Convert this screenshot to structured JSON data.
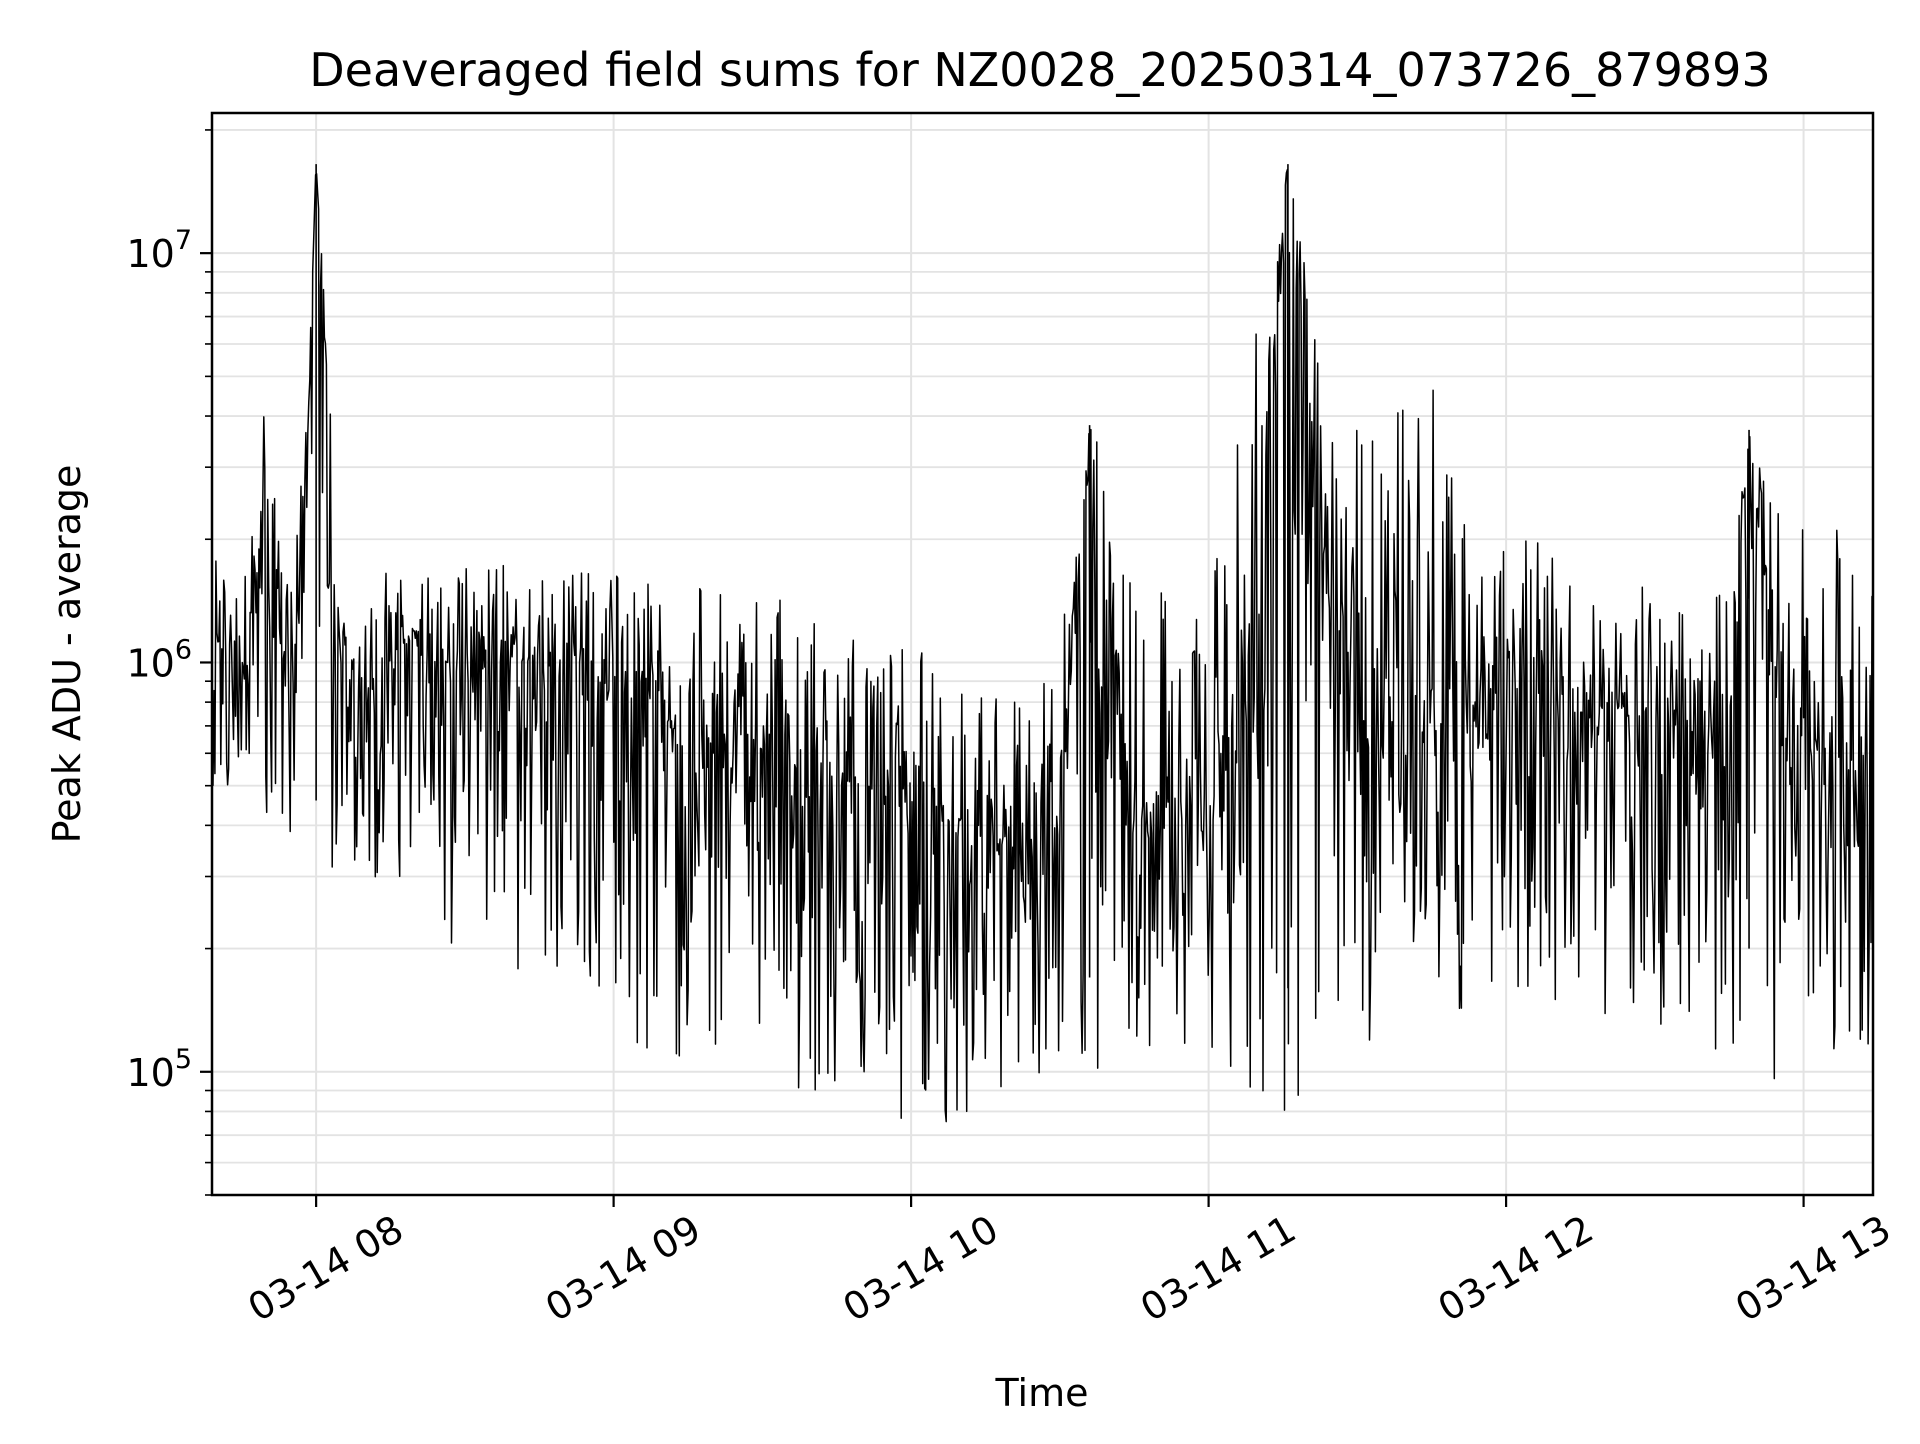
{
  "chart_data": {
    "type": "line",
    "title": "Deaveraged field sums for NZ0028_20250314_073726_879893",
    "xlabel": "Time",
    "ylabel": "Peak ADU - average",
    "x_range": [
      "2025-03-14T07:39:00",
      "2025-03-14T13:14:00"
    ],
    "xticks": [
      {
        "t": "2025-03-14T08:00:00",
        "label": "03-14 08"
      },
      {
        "t": "2025-03-14T09:00:00",
        "label": "03-14 09"
      },
      {
        "t": "2025-03-14T10:00:00",
        "label": "03-14 10"
      },
      {
        "t": "2025-03-14T11:00:00",
        "label": "03-14 11"
      },
      {
        "t": "2025-03-14T12:00:00",
        "label": "03-14 12"
      },
      {
        "t": "2025-03-14T13:00:00",
        "label": "03-14 13"
      }
    ],
    "y_scale": "log",
    "ylim": [
      50000,
      22000000
    ],
    "yticks": [
      {
        "value": 100000,
        "base": "10",
        "exp": "5"
      },
      {
        "value": 1000000,
        "base": "10",
        "exp": "6"
      },
      {
        "value": 10000000,
        "base": "10",
        "exp": "7"
      }
    ],
    "grid": true,
    "series": [
      {
        "color": "#000000",
        "x": [
          "2025-03-14T07:39:00",
          "2025-03-14T07:45:00",
          "2025-03-14T07:50:00",
          "2025-03-14T07:55:00",
          "2025-03-14T07:58:00",
          "2025-03-14T08:00:00",
          "2025-03-14T08:05:00",
          "2025-03-14T08:10:00",
          "2025-03-14T08:20:00",
          "2025-03-14T08:30:00",
          "2025-03-14T08:40:00",
          "2025-03-14T08:50:00",
          "2025-03-14T09:00:00",
          "2025-03-14T09:10:00",
          "2025-03-14T09:20:00",
          "2025-03-14T09:30:00",
          "2025-03-14T09:40:00",
          "2025-03-14T09:50:00",
          "2025-03-14T10:00:00",
          "2025-03-14T10:10:00",
          "2025-03-14T10:20:00",
          "2025-03-14T10:30:00",
          "2025-03-14T10:36:00",
          "2025-03-14T10:45:00",
          "2025-03-14T10:55:00",
          "2025-03-14T11:05:00",
          "2025-03-14T11:09:00",
          "2025-03-14T11:16:00",
          "2025-03-14T11:25:00",
          "2025-03-14T11:35:00",
          "2025-03-14T11:45:00",
          "2025-03-14T11:55:00",
          "2025-03-14T12:05:00",
          "2025-03-14T12:15:00",
          "2025-03-14T12:25:00",
          "2025-03-14T12:35:00",
          "2025-03-14T12:45:00",
          "2025-03-14T12:49:00",
          "2025-03-14T12:55:00",
          "2025-03-14T13:05:00",
          "2025-03-14T13:14:00"
        ],
        "y": [
          1200000,
          900000,
          2500000,
          800000,
          3000000,
          16500000,
          1000000,
          850000,
          1200000,
          900000,
          1000000,
          1100000,
          800000,
          700000,
          650000,
          600000,
          550000,
          500000,
          450000,
          400000,
          350000,
          400000,
          3800000,
          450000,
          400000,
          600000,
          800000,
          16500000,
          1000000,
          600000,
          700000,
          800000,
          900000,
          800000,
          750000,
          700000,
          700000,
          3700000,
          650000,
          600000,
          550000
        ],
        "band": {
          "upper": [
            1800000,
            1600000,
            4500000,
            1500000,
            5000000,
            16500000,
            2000000,
            1700000,
            1600000,
            1700000,
            1900000,
            1800000,
            1700000,
            1600000,
            1500000,
            1500000,
            1300000,
            1200000,
            1100000,
            950000,
            900000,
            1100000,
            3800000,
            2500000,
            1700000,
            5500000,
            6000000,
            16500000,
            4000000,
            3500000,
            6000000,
            1900000,
            2000000,
            1800000,
            1600000,
            1500000,
            1500000,
            3700000,
            2400000,
            2200000,
            2200000
          ],
          "lower": [
            500000,
            300000,
            400000,
            350000,
            400000,
            230000,
            350000,
            300000,
            250000,
            180000,
            160000,
            140000,
            120000,
            110000,
            100000,
            95000,
            90000,
            80000,
            70000,
            75000,
            75000,
            80000,
            85000,
            100000,
            95000,
            90000,
            85000,
            80000,
            90000,
            110000,
            130000,
            140000,
            150000,
            130000,
            120000,
            120000,
            110000,
            100000,
            95000,
            105000,
            110000
          ]
        }
      }
    ]
  }
}
